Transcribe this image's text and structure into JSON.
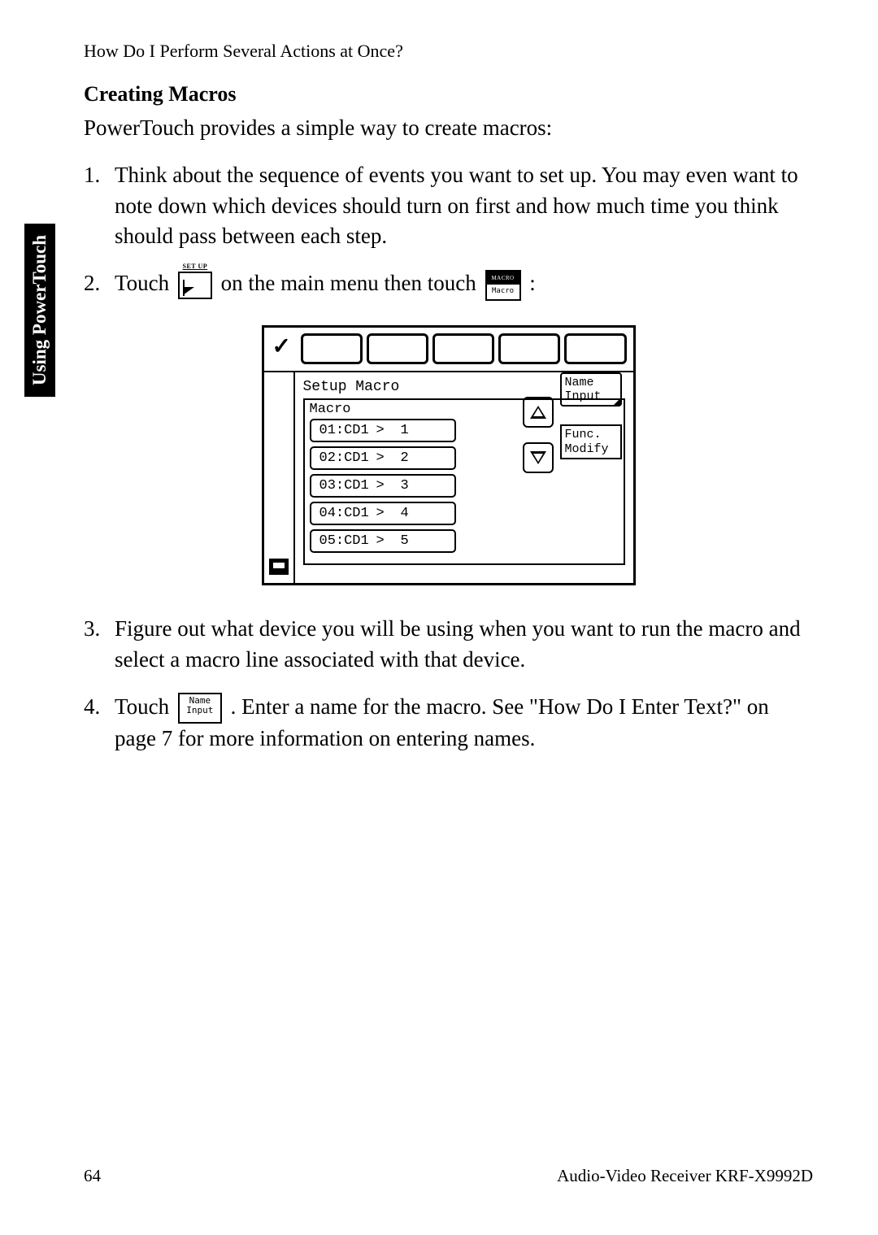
{
  "header": "How Do I Perform Several Actions at Once?",
  "sideTab": "Using PowerTouch",
  "sectionTitle": "Creating Macros",
  "intro": "PowerTouch provides a simple way to create macros:",
  "steps": {
    "s1": {
      "num": "1.",
      "text": "Think about the sequence of events you want to set up. You may even want to note down which devices should turn on first and how much time you think should pass between each step."
    },
    "s2": {
      "num": "2.",
      "pre": "Touch ",
      "mid": " on the main menu then touch ",
      "post": ":"
    },
    "s3": {
      "num": "3.",
      "text": "Figure out what device you will be using when you want to run the macro and select a macro line associated with that device."
    },
    "s4": {
      "num": "4.",
      "pre": "Touch ",
      "post": " . Enter a name for the macro. See \"How Do I Enter Text?\" on page 7 for more information on entering names."
    }
  },
  "icons": {
    "setup": "SET UP",
    "macroTop": "MACRO",
    "macroBottom": "Macro",
    "nameInput1": "Name",
    "nameInput2": "Input"
  },
  "screenshot": {
    "title": "Setup Macro",
    "boxLabel": "Macro",
    "rows": [
      {
        "code": "01:CD1",
        "arrow": ">",
        "num": "1"
      },
      {
        "code": "02:CD1",
        "arrow": ">",
        "num": "2"
      },
      {
        "code": "03:CD1",
        "arrow": ">",
        "num": "3"
      },
      {
        "code": "04:CD1",
        "arrow": ">",
        "num": "4"
      },
      {
        "code": "05:CD1",
        "arrow": ">",
        "num": "5"
      }
    ],
    "btnName1": "Name",
    "btnName2": "Input",
    "btnFunc1": "Func.",
    "btnFunc2": "Modify"
  },
  "footer": {
    "pageNum": "64",
    "product": "Audio-Video Receiver KRF-X9992D"
  }
}
